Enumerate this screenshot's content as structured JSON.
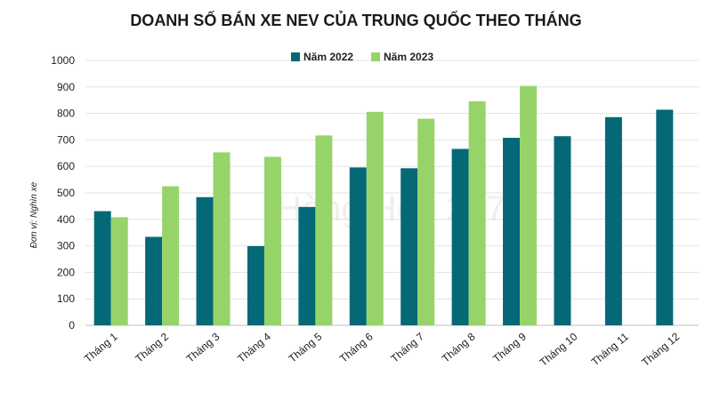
{
  "chart_data": {
    "type": "bar",
    "title": "DOANH SỐ BÁN XE NEV CỦA TRUNG QUỐC THEO THÁNG",
    "xlabel": "",
    "ylabel": "Đơn vị: Nghìn xe",
    "ylim": [
      0,
      1000
    ],
    "yticks": [
      0,
      100,
      200,
      300,
      400,
      500,
      600,
      700,
      800,
      900,
      1000
    ],
    "grid": true,
    "legend_position": "top-center",
    "categories": [
      "Tháng 1",
      "Tháng 2",
      "Tháng 3",
      "Tháng 4",
      "Tháng 5",
      "Tháng 6",
      "Tháng 7",
      "Tháng 8",
      "Tháng 9",
      "Tháng 10",
      "Tháng 11",
      "Tháng 12"
    ],
    "series": [
      {
        "name": "Năm 2022",
        "color": "#046877",
        "values": [
          431,
          334,
          484,
          299,
          447,
          596,
          593,
          666,
          708,
          714,
          786,
          814
        ]
      },
      {
        "name": "Năm 2023",
        "color": "#96d46a",
        "values": [
          408,
          525,
          653,
          636,
          717,
          806,
          780,
          846,
          904,
          null,
          null,
          null
        ]
      }
    ]
  },
  "watermark": {
    "text": "Hàng Hóa 247"
  }
}
